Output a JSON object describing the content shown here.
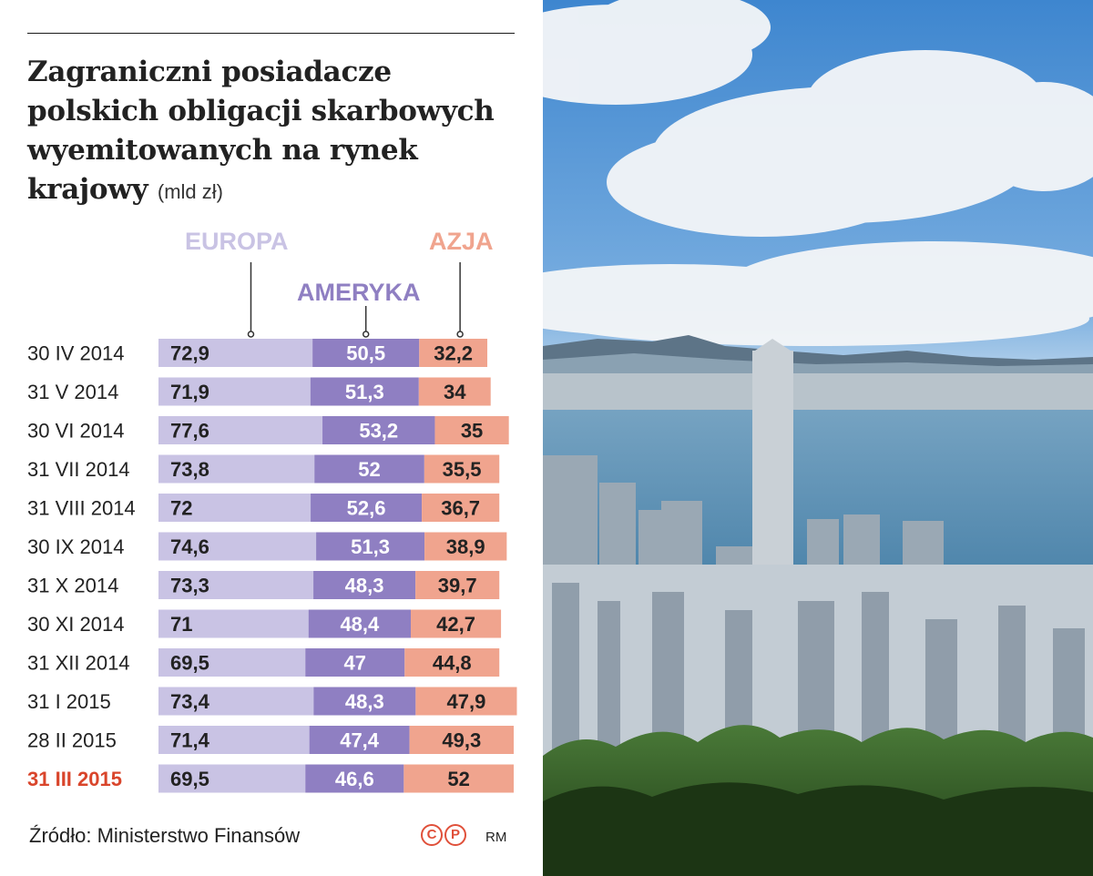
{
  "chart_data": {
    "type": "bar",
    "stacked": true,
    "orientation": "horizontal",
    "title": "Zagraniczni posiadacze polskich obligacji skarbowych wyemitowanych na rynek krajowy",
    "unit": "(mld zł)",
    "categories": [
      "30 IV 2014",
      "31 V 2014",
      "30 VI 2014",
      "31 VII 2014",
      "31 VIII 2014",
      "30 IX 2014",
      "31 X 2014",
      "30 XI 2014",
      "31 XII 2014",
      "31 I 2015",
      "28 II 2015",
      "31 III 2015"
    ],
    "value_labels": [
      [
        "72,9",
        "50,5",
        "32,2"
      ],
      [
        "71,9",
        "51,3",
        "34"
      ],
      [
        "77,6",
        "53,2",
        "35"
      ],
      [
        "73,8",
        "52",
        "35,5"
      ],
      [
        "72",
        "52,6",
        "36,7"
      ],
      [
        "74,6",
        "51,3",
        "38,9"
      ],
      [
        "73,3",
        "48,3",
        "39,7"
      ],
      [
        "71",
        "48,4",
        "42,7"
      ],
      [
        "69,5",
        "47",
        "44,8"
      ],
      [
        "73,4",
        "48,3",
        "47,9"
      ],
      [
        "71,4",
        "47,4",
        "49,3"
      ],
      [
        "69,5",
        "46,6",
        "52"
      ]
    ],
    "series": [
      {
        "name": "EUROPA",
        "values": [
          72.9,
          71.9,
          77.6,
          73.8,
          72,
          74.6,
          73.3,
          71,
          69.5,
          73.4,
          71.4,
          69.5
        ],
        "color": "#c9c3e4",
        "label_color": "#222222"
      },
      {
        "name": "AMERYKA",
        "values": [
          50.5,
          51.3,
          53.2,
          52,
          52.6,
          51.3,
          48.3,
          48.4,
          47,
          48.3,
          47.4,
          46.6
        ],
        "color": "#8f7fc2",
        "label_color": "#ffffff"
      },
      {
        "name": "AZJA",
        "values": [
          32.2,
          34,
          35,
          35.5,
          36.7,
          38.9,
          39.7,
          42.7,
          44.8,
          47.9,
          49.3,
          52
        ],
        "color": "#f0a48e",
        "label_color": "#222222"
      }
    ],
    "legend_colors": {
      "EUROPA": "#c9c3e4",
      "AMERYKA": "#8f7fc2",
      "AZJA": "#f0a48e"
    },
    "highlight_category": "31 III 2015",
    "highlight_color": "#d9452b",
    "category_color": "#222222"
  },
  "header": {
    "title": "Zagraniczni posiadacze polskich obligacji skarbowych wyemitowanych na rynek krajowy",
    "unit": "(mld zł)"
  },
  "footer": {
    "source": "Źródło: Ministerstwo Finansów",
    "copyright_c": "C",
    "copyright_p": "P",
    "credit": "RM"
  }
}
